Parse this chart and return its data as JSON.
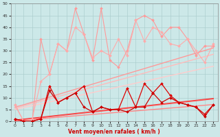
{
  "title": "",
  "xlabel": "Vent moyen/en rafales ( km/h )",
  "ylabel": "",
  "background_color": "#cce8e8",
  "grid_color": "#aacccc",
  "xlim": [
    -0.5,
    23.5
  ],
  "ylim": [
    0,
    50
  ],
  "xticks": [
    0,
    1,
    2,
    3,
    4,
    5,
    6,
    7,
    8,
    9,
    10,
    11,
    12,
    13,
    14,
    15,
    16,
    17,
    18,
    19,
    20,
    21,
    22,
    23
  ],
  "yticks": [
    0,
    5,
    10,
    15,
    20,
    25,
    30,
    35,
    40,
    45,
    50
  ],
  "x": [
    0,
    1,
    2,
    3,
    4,
    5,
    6,
    7,
    8,
    9,
    10,
    11,
    12,
    13,
    14,
    15,
    16,
    17,
    18,
    19,
    20,
    21,
    22,
    23
  ],
  "series": [
    {
      "y": [
        7,
        0,
        0,
        35,
        20,
        33,
        30,
        48,
        37,
        26,
        48,
        26,
        23,
        30,
        43,
        45,
        43,
        36,
        40,
        40,
        35,
        28,
        32,
        32
      ],
      "color": "#ff9999",
      "linewidth": 0.8,
      "marker": "D",
      "markersize": 2.0,
      "zorder": 3
    },
    {
      "y": [
        7,
        0,
        1,
        17,
        20,
        33,
        30,
        40,
        37,
        27,
        30,
        28,
        35,
        28,
        43,
        34,
        40,
        38,
        33,
        32,
        35,
        30,
        25,
        33
      ],
      "color": "#ffaaaa",
      "linewidth": 0.8,
      "marker": "D",
      "markersize": 2.0,
      "zorder": 3
    },
    {
      "y": [
        6,
        7.0,
        8.1,
        9.2,
        10.3,
        11.4,
        12.5,
        13.6,
        14.7,
        15.8,
        16.9,
        18.0,
        19.1,
        20.2,
        21.3,
        22.4,
        23.5,
        24.6,
        25.7,
        26.8,
        27.9,
        29.0,
        30.1,
        31.2
      ],
      "color": "#ff9999",
      "linewidth": 1.0,
      "marker": null,
      "zorder": 2,
      "linestyle": "-"
    },
    {
      "y": [
        5.5,
        6.5,
        7.5,
        8.5,
        9.5,
        10.5,
        11.5,
        12.5,
        13.5,
        14.5,
        15.5,
        16.5,
        17.5,
        18.5,
        19.5,
        20.5,
        21.5,
        22.5,
        23.5,
        24.5,
        25.5,
        26.5,
        27.5,
        28.5
      ],
      "color": "#ffbbbb",
      "linewidth": 1.0,
      "marker": null,
      "zorder": 2,
      "linestyle": "-"
    },
    {
      "y": [
        5.0,
        5.8,
        6.6,
        7.4,
        8.2,
        9.0,
        9.8,
        10.6,
        11.4,
        12.2,
        13.0,
        13.8,
        14.6,
        15.4,
        16.2,
        17.0,
        17.8,
        18.6,
        19.4,
        20.2,
        21.0,
        21.8,
        22.6,
        23.4
      ],
      "color": "#ffcccc",
      "linewidth": 1.0,
      "marker": null,
      "zorder": 2,
      "linestyle": "-"
    },
    {
      "y": [
        1,
        0,
        0,
        1,
        15,
        8,
        10,
        12,
        15,
        4,
        6,
        5,
        5,
        14,
        6,
        16,
        12,
        16,
        11,
        8,
        7,
        6,
        3,
        7
      ],
      "color": "#dd0000",
      "linewidth": 0.9,
      "marker": "D",
      "markersize": 2.0,
      "zorder": 4
    },
    {
      "y": [
        1,
        0,
        0,
        1,
        13,
        8,
        10,
        12,
        6,
        4,
        6,
        5,
        5,
        4,
        6,
        6,
        12,
        8,
        10,
        8,
        7,
        6,
        2,
        7
      ],
      "color": "#cc0000",
      "linewidth": 0.9,
      "marker": "D",
      "markersize": 2.0,
      "zorder": 4
    },
    {
      "y": [
        0.5,
        0.9,
        1.3,
        1.7,
        2.1,
        2.5,
        2.9,
        3.3,
        3.7,
        4.1,
        4.5,
        4.9,
        5.3,
        5.7,
        6.1,
        6.5,
        6.9,
        7.3,
        7.7,
        8.1,
        8.5,
        8.9,
        9.3,
        9.7
      ],
      "color": "#ee3333",
      "linewidth": 1.0,
      "marker": null,
      "zorder": 2,
      "linestyle": "-"
    },
    {
      "y": [
        0.3,
        0.7,
        1.1,
        1.5,
        1.9,
        2.3,
        2.7,
        3.1,
        3.5,
        3.9,
        4.3,
        4.7,
        5.1,
        5.5,
        5.9,
        6.3,
        6.7,
        7.1,
        7.5,
        7.9,
        8.3,
        8.7,
        9.1,
        9.5
      ],
      "color": "#ff5555",
      "linewidth": 1.0,
      "marker": null,
      "zorder": 2,
      "linestyle": "-"
    },
    {
      "y": [
        0.1,
        0.4,
        0.8,
        1.1,
        1.4,
        1.7,
        2.0,
        2.3,
        2.6,
        2.9,
        3.2,
        3.5,
        3.8,
        4.1,
        4.4,
        4.7,
        5.0,
        5.3,
        5.6,
        5.9,
        6.2,
        6.5,
        6.8,
        7.1
      ],
      "color": "#ff8888",
      "linewidth": 1.0,
      "marker": null,
      "zorder": 2,
      "linestyle": "-"
    }
  ]
}
